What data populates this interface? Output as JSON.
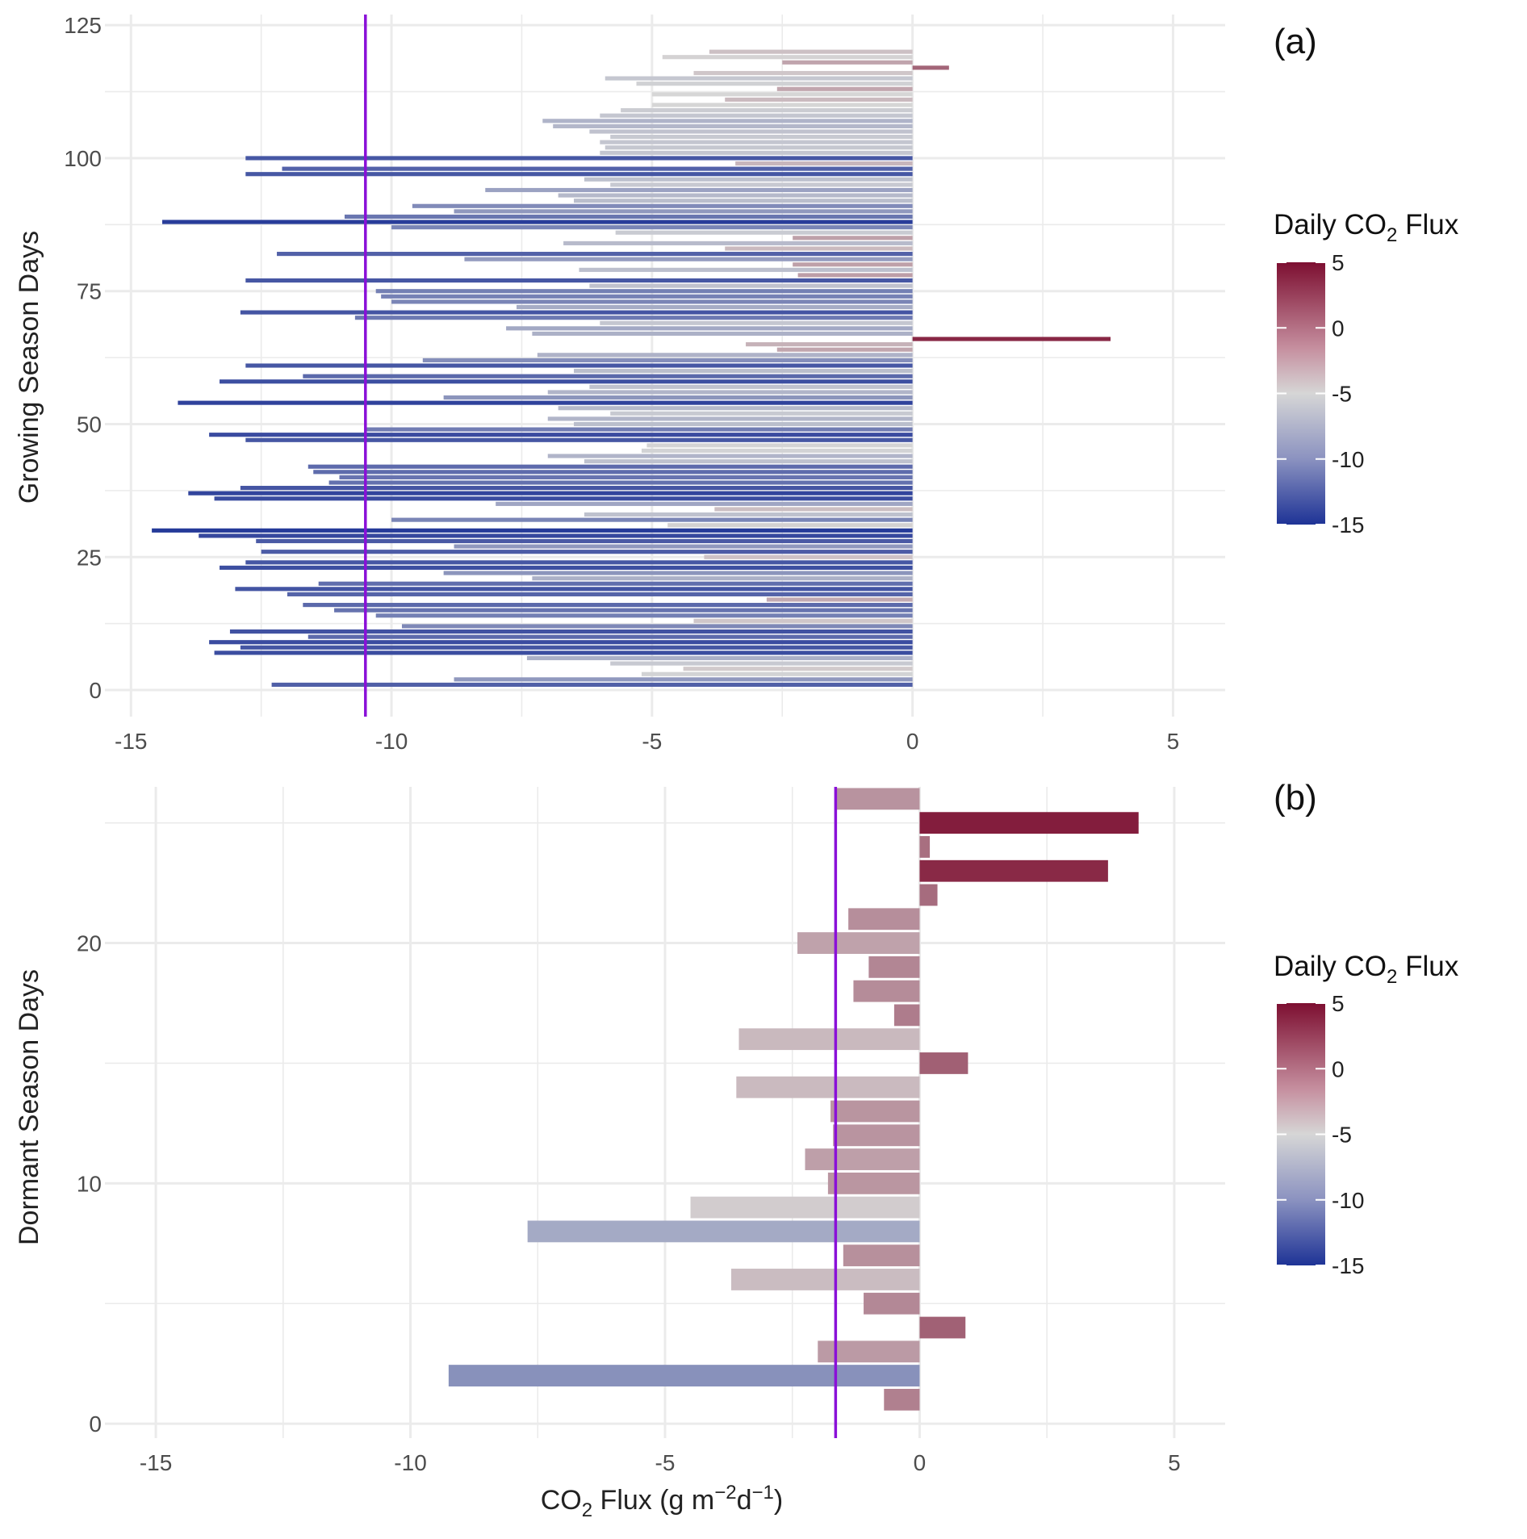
{
  "chart_data": [
    {
      "type": "bar",
      "orientation": "horizontal",
      "panel_label": "(a)",
      "xlabel": "",
      "ylabel": "Growing Season Days",
      "xlim": [
        -15.5,
        6
      ],
      "ylim": [
        -5,
        127
      ],
      "x_ticks": [
        "-15",
        "-10",
        "-5",
        "0",
        "5"
      ],
      "y_ticks": [
        "0",
        "25",
        "50",
        "75",
        "100",
        "125"
      ],
      "grid": true,
      "reference_line": {
        "x": -10.5,
        "color": "#8A10D8"
      },
      "legend": {
        "title_main": "Daily CO",
        "title_sub": "2",
        "title_tail": " Flux",
        "ticks": [
          "5",
          "0",
          "-5",
          "-10",
          "-15"
        ],
        "placement": "right"
      },
      "color_scale": {
        "low": "#1E3396",
        "mid": "#D6D6D6",
        "high": "#7D0F31",
        "min": -15,
        "max": 5
      },
      "days": [
        1,
        2,
        3,
        4,
        5,
        6,
        7,
        8,
        9,
        10,
        11,
        12,
        13,
        14,
        15,
        16,
        17,
        18,
        19,
        20,
        21,
        22,
        23,
        24,
        25,
        26,
        27,
        28,
        29,
        30,
        31,
        32,
        33,
        34,
        35,
        36,
        37,
        38,
        39,
        40,
        41,
        42,
        43,
        44,
        45,
        46,
        47,
        48,
        49,
        50,
        51,
        52,
        53,
        54,
        55,
        56,
        57,
        58,
        59,
        60,
        61,
        62,
        63,
        64,
        65,
        66,
        67,
        68,
        69,
        70,
        71,
        72,
        73,
        74,
        75,
        76,
        77,
        78,
        79,
        80,
        81,
        82,
        83,
        84,
        85,
        86,
        87,
        88,
        89,
        90,
        91,
        92,
        93,
        94,
        95,
        96,
        97,
        98,
        99,
        100,
        101,
        102,
        103,
        104,
        105,
        106,
        107,
        108,
        109,
        110,
        111,
        112,
        113,
        114,
        115,
        116,
        117,
        118,
        119,
        120
      ],
      "values": [
        -12.3,
        -8.8,
        -5.2,
        -4.4,
        -5.8,
        -7.4,
        -13.4,
        -12.9,
        -13.5,
        -11.6,
        -13.1,
        -9.8,
        -4.2,
        -10.3,
        -11.1,
        -11.7,
        -2.8,
        -12.0,
        -13.0,
        -11.4,
        -7.3,
        -9.0,
        -13.3,
        -12.8,
        -4.0,
        -12.5,
        -8.8,
        -12.6,
        -13.7,
        -14.6,
        -4.7,
        -10.0,
        -6.3,
        -3.8,
        -8.0,
        -13.4,
        -13.9,
        -12.9,
        -11.2,
        -11.0,
        -11.5,
        -11.6,
        -6.3,
        -7.0,
        -5.2,
        -5.1,
        -12.8,
        -13.5,
        -10.5,
        -6.5,
        -7.0,
        -5.8,
        -6.8,
        -14.1,
        -9.0,
        -7.0,
        -6.2,
        -13.3,
        -11.7,
        -6.5,
        -12.8,
        -9.4,
        -7.2,
        -2.6,
        -3.2,
        3.8,
        -7.3,
        -7.8,
        -6.0,
        -10.7,
        -12.9,
        -7.6,
        -10.0,
        -10.2,
        -10.3,
        -6.2,
        -12.8,
        -2.2,
        -6.4,
        -2.3,
        -8.6,
        -12.2,
        -3.6,
        -6.7,
        -2.3,
        -5.7,
        -10.0,
        -14.4,
        -10.9,
        -8.8,
        -9.6,
        -6.5,
        -6.8,
        -8.2,
        -5.8,
        -6.3,
        -12.8,
        -12.1,
        -3.4,
        -12.8,
        -6.0,
        -5.9,
        -6.0,
        -5.8,
        -6.2,
        -6.9,
        -7.1,
        -6.0,
        -5.6,
        -5.0,
        -3.6,
        -5.0,
        -2.6,
        -5.3,
        -5.9,
        -4.2,
        0.7,
        -2.5,
        -4.8,
        -3.9
      ]
    },
    {
      "type": "bar",
      "orientation": "horizontal",
      "panel_label": "(b)",
      "xlabel_main": "CO",
      "xlabel_sub": "2",
      "xlabel_mid": " Flux (g m",
      "xlabel_sup1": "−2",
      "xlabel_mid2": "d",
      "xlabel_sup2": "−1",
      "xlabel_tail": ")",
      "ylabel": "Dormant Season Days",
      "xlim": [
        -16.0,
        6.0
      ],
      "ylim": [
        -0.6,
        26.5
      ],
      "x_ticks": [
        "-15",
        "-10",
        "-5",
        "0",
        "5"
      ],
      "y_ticks": [
        "0",
        "10",
        "20"
      ],
      "grid": true,
      "reference_line": {
        "x": -1.65,
        "color": "#8A10D8"
      },
      "legend": {
        "title_main": "Daily CO",
        "title_sub": "2",
        "title_tail": " Flux",
        "ticks": [
          "5",
          "0",
          "-5",
          "-10",
          "-15"
        ],
        "placement": "right"
      },
      "color_scale": {
        "low": "#1E3396",
        "mid": "#D6D6D6",
        "high": "#7D0F31",
        "min": -15,
        "max": 5
      },
      "days": [
        1,
        2,
        3,
        4,
        5,
        6,
        7,
        8,
        9,
        10,
        11,
        12,
        13,
        14,
        15,
        16,
        17,
        18,
        19,
        20,
        21,
        22,
        23,
        24,
        25,
        26
      ],
      "values": [
        -0.7,
        -9.25,
        -2.0,
        0.9,
        -1.1,
        -3.7,
        -1.5,
        -7.7,
        -4.5,
        -1.8,
        -2.25,
        -1.7,
        -1.75,
        -3.6,
        0.95,
        -3.55,
        -0.5,
        -1.3,
        -1.0,
        -2.4,
        -1.4,
        0.35,
        3.7,
        0.2,
        4.3,
        -1.65
      ]
    }
  ]
}
